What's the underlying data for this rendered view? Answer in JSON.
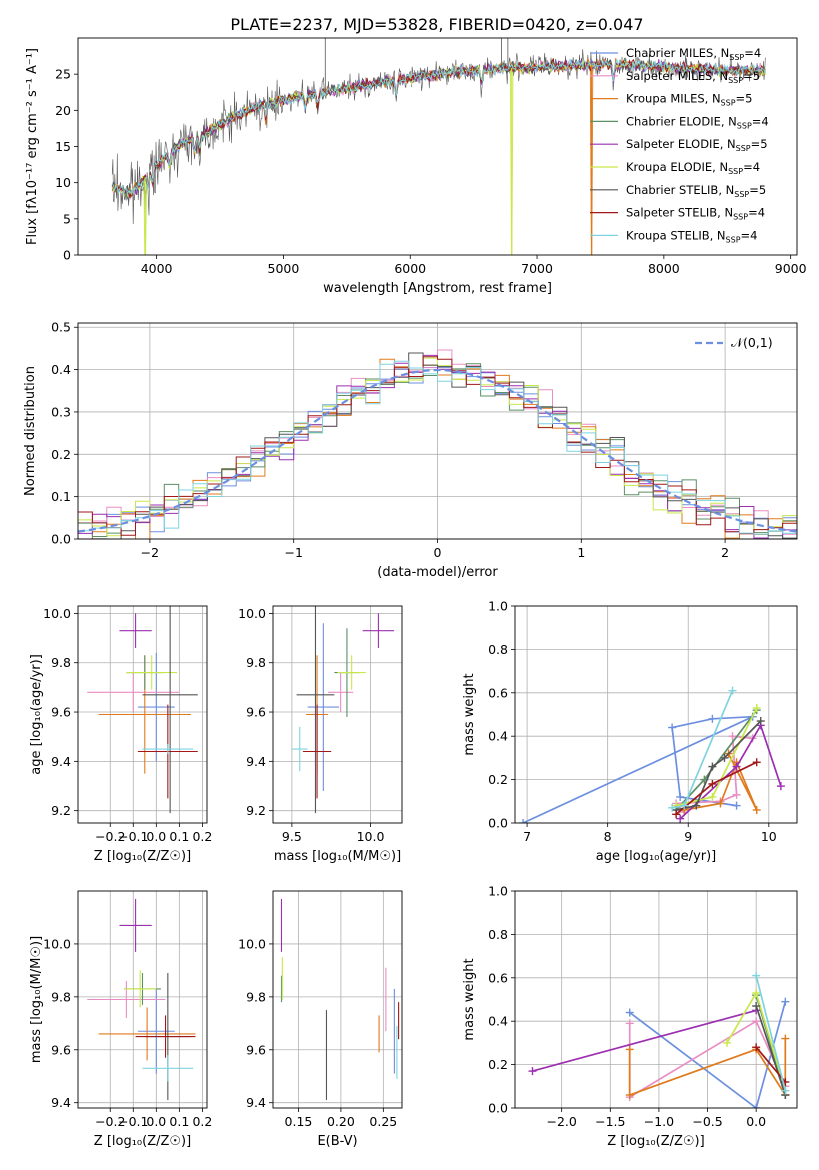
{
  "figure_title": "PLATE=2237, MJD=53828, FIBERID=0420, z=0.047",
  "models": [
    {
      "name": "Chabrier MILES",
      "nssp": "4",
      "color": "#6c8fe0"
    },
    {
      "name": "Salpeter MILES",
      "nssp": "5",
      "color": "#e88ec4"
    },
    {
      "name": "Kroupa MILES",
      "nssp": "5",
      "color": "#e07a1c"
    },
    {
      "name": "Chabrier ELODIE",
      "nssp": "4",
      "color": "#5c8f66"
    },
    {
      "name": "Salpeter ELODIE",
      "nssp": "5",
      "color": "#9b2fb0"
    },
    {
      "name": "Kroupa ELODIE",
      "nssp": "4",
      "color": "#c8e84a"
    },
    {
      "name": "Chabrier STELIB",
      "nssp": "5",
      "color": "#555555"
    },
    {
      "name": "Salpeter STELIB",
      "nssp": "4",
      "color": "#a01818"
    },
    {
      "name": "Kroupa STELIB",
      "nssp": "4",
      "color": "#7fd3e0"
    }
  ],
  "chart_data": [
    {
      "id": "spectrum",
      "type": "line",
      "title": "PLATE=2237, MJD=53828, FIBERID=0420, z=0.047",
      "xlabel": "wavelength [Angstrom, rest frame]",
      "ylabel": "Flux [fλ10⁻¹⁷ erg cm⁻² s⁻¹ A⁻¹]",
      "xlim": [
        3380,
        9050
      ],
      "ylim": [
        0,
        30
      ],
      "xticks": [
        4000,
        5000,
        6000,
        7000,
        8000,
        9000
      ],
      "yticks": [
        0,
        5,
        10,
        15,
        20,
        25
      ],
      "legend_loc": "right",
      "data_color": "#555555",
      "continuum": {
        "x": [
          3650,
          3800,
          4000,
          4200,
          4400,
          4600,
          4800,
          5000,
          5200,
          5500,
          5800,
          6100,
          6400,
          6700,
          7000,
          7300,
          7600,
          8000,
          8400,
          8800
        ],
        "y": [
          9.5,
          8.5,
          12.5,
          15.5,
          17.0,
          19.0,
          20.5,
          21.5,
          22.2,
          23.0,
          24.0,
          24.8,
          25.3,
          25.8,
          26.0,
          26.2,
          26.4,
          26.0,
          25.6,
          25.5
        ]
      },
      "dropouts": [
        {
          "x": 3910,
          "color": "#c8e84a"
        },
        {
          "x": 6800,
          "color": "#c8e84a"
        },
        {
          "x": 7430,
          "color": "#e07a1c"
        }
      ],
      "spikes": [
        {
          "x": 5330,
          "y": 30
        },
        {
          "x": 6720,
          "y": 30
        },
        {
          "x": 6770,
          "y": 30
        }
      ]
    },
    {
      "id": "residuals",
      "type": "bar",
      "xlabel": "(data-model)/error",
      "ylabel": "Normed distribution",
      "xlim": [
        -2.5,
        2.5
      ],
      "ylim": [
        0,
        0.51
      ],
      "xticks": [
        -2,
        -1,
        0,
        1,
        2
      ],
      "yticks": [
        0.0,
        0.1,
        0.2,
        0.3,
        0.4,
        0.5
      ],
      "legend": "𝒩(0,1)",
      "legend_loc": "upper right",
      "curve_color": "#6c8fe0",
      "grid": true
    },
    {
      "id": "age_vs_Z",
      "type": "scatter",
      "xlabel": "Z [log₁₀(Z/Z☉)]",
      "ylabel": "age  [log₁₀(age/yr)]",
      "xlim": [
        -0.34,
        0.22
      ],
      "ylim": [
        9.15,
        10.03
      ],
      "xticks": [
        -0.2,
        -0.1,
        0.0,
        0.1,
        0.2
      ],
      "yticks": [
        9.2,
        9.4,
        9.6,
        9.8,
        10.0
      ],
      "grid": true,
      "points": [
        {
          "model": 0,
          "x": 0.0,
          "xerr": 0.08,
          "y": 9.62,
          "yerr": 0.22
        },
        {
          "model": 1,
          "x": -0.1,
          "xerr": 0.2,
          "y": 9.68,
          "yerr": 0.08
        },
        {
          "model": 2,
          "x": -0.05,
          "xerr": 0.2,
          "y": 9.59,
          "yerr": 0.24
        },
        {
          "model": 3,
          "x": -0.05,
          "xerr": 0.08,
          "y": 9.76,
          "yerr": 0.07
        },
        {
          "model": 4,
          "x": -0.09,
          "xerr": 0.07,
          "y": 9.93,
          "yerr": 0.07
        },
        {
          "model": 5,
          "x": -0.02,
          "xerr": 0.11,
          "y": 9.76,
          "yerr": 0.07
        },
        {
          "model": 6,
          "x": 0.06,
          "xerr": 0.12,
          "y": 9.67,
          "yerr": 0.48
        },
        {
          "model": 7,
          "x": 0.05,
          "xerr": 0.13,
          "y": 9.44,
          "yerr": 0.19
        },
        {
          "model": 8,
          "x": 0.05,
          "xerr": 0.11,
          "y": 9.45,
          "yerr": 0.02
        }
      ]
    },
    {
      "id": "age_vs_mass",
      "type": "scatter",
      "xlabel": "mass [log₁₀(M/M☉)]",
      "ylabel": "",
      "xlim": [
        9.38,
        10.2
      ],
      "ylim": [
        9.15,
        10.03
      ],
      "xticks": [
        9.5,
        10.0
      ],
      "yticks": [
        9.2,
        9.4,
        9.6,
        9.8,
        10.0
      ],
      "grid": true,
      "points": [
        {
          "model": 0,
          "x": 9.7,
          "xerr": 0.1,
          "y": 9.62,
          "yerr": 0.34
        },
        {
          "model": 1,
          "x": 9.81,
          "xerr": 0.08,
          "y": 9.68,
          "yerr": 0.08
        },
        {
          "model": 2,
          "x": 9.66,
          "xerr": 0.07,
          "y": 9.59,
          "yerr": 0.24
        },
        {
          "model": 3,
          "x": 9.85,
          "xerr": 0.08,
          "y": 9.76,
          "yerr": 0.18
        },
        {
          "model": 4,
          "x": 10.05,
          "xerr": 0.1,
          "y": 9.93,
          "yerr": 0.07
        },
        {
          "model": 5,
          "x": 9.88,
          "xerr": 0.09,
          "y": 9.76,
          "yerr": 0.07
        },
        {
          "model": 6,
          "x": 9.65,
          "xerr": 0.12,
          "y": 9.67,
          "yerr": 0.48
        },
        {
          "model": 7,
          "x": 9.66,
          "xerr": 0.09,
          "y": 9.44,
          "yerr": 0.19
        },
        {
          "model": 8,
          "x": 9.55,
          "xerr": 0.05,
          "y": 9.45,
          "yerr": 0.09
        }
      ]
    },
    {
      "id": "mw_vs_age",
      "type": "line",
      "xlabel": "age  [log₁₀(age/yr)]",
      "ylabel": "mass weight",
      "xlim": [
        6.85,
        10.35
      ],
      "ylim": [
        0,
        1.0
      ],
      "xticks": [
        7,
        8,
        9,
        10
      ],
      "yticks": [
        0.0,
        0.2,
        0.4,
        0.6,
        0.8,
        1.0
      ],
      "grid": true,
      "series": [
        {
          "model": 0,
          "x": [
            9.6,
            8.9,
            8.8,
            9.3,
            9.8,
            6.95
          ],
          "y": [
            0.08,
            0.12,
            0.44,
            0.48,
            0.49,
            0.0
          ]
        },
        {
          "model": 1,
          "x": [
            8.95,
            8.85,
            9.4,
            9.6,
            9.55,
            9.8
          ],
          "y": [
            0.05,
            0.09,
            0.1,
            0.13,
            0.4,
            0.39
          ]
        },
        {
          "model": 2,
          "x": [
            8.95,
            9.4,
            9.6,
            9.85,
            9.5
          ],
          "y": [
            0.06,
            0.09,
            0.28,
            0.06,
            0.32
          ]
        },
        {
          "model": 3,
          "x": [
            8.85,
            9.2,
            9.85
          ],
          "y": [
            0.06,
            0.2,
            0.52
          ]
        },
        {
          "model": 4,
          "x": [
            8.9,
            9.6,
            9.9,
            10.15
          ],
          "y": [
            0.02,
            0.26,
            0.45,
            0.17
          ]
        },
        {
          "model": 5,
          "x": [
            8.85,
            9.3,
            9.85
          ],
          "y": [
            0.08,
            0.12,
            0.53
          ]
        },
        {
          "model": 6,
          "x": [
            8.85,
            9.1,
            9.3,
            9.45,
            9.9
          ],
          "y": [
            0.06,
            0.08,
            0.26,
            0.3,
            0.47
          ]
        },
        {
          "model": 7,
          "x": [
            8.85,
            9.3,
            9.85
          ],
          "y": [
            0.04,
            0.18,
            0.28
          ]
        },
        {
          "model": 8,
          "x": [
            8.8,
            8.95,
            9.55
          ],
          "y": [
            0.07,
            0.08,
            0.61
          ]
        }
      ]
    },
    {
      "id": "mass_vs_Z",
      "type": "scatter",
      "xlabel": "Z [log₁₀(Z/Z☉)]",
      "ylabel": "mass [log₁₀(M/M☉)]",
      "xlim": [
        -0.34,
        0.22
      ],
      "ylim": [
        9.38,
        10.2
      ],
      "xticks": [
        -0.2,
        -0.1,
        0.0,
        0.1,
        0.2
      ],
      "yticks": [
        9.4,
        9.6,
        9.8,
        10.0
      ],
      "grid": true,
      "points": [
        {
          "model": 0,
          "x": 0.0,
          "xerr": 0.08,
          "y": 9.67,
          "yerr": 0.16
        },
        {
          "model": 1,
          "x": -0.13,
          "xerr": 0.17,
          "y": 9.79,
          "yerr": 0.07
        },
        {
          "model": 2,
          "x": -0.04,
          "xerr": 0.21,
          "y": 9.66,
          "yerr": 0.1
        },
        {
          "model": 3,
          "x": -0.06,
          "xerr": 0.08,
          "y": 9.83,
          "yerr": 0.06
        },
        {
          "model": 4,
          "x": -0.09,
          "xerr": 0.07,
          "y": 10.07,
          "yerr": 0.1
        },
        {
          "model": 5,
          "x": -0.07,
          "xerr": 0.07,
          "y": 9.83,
          "yerr": 0.07
        },
        {
          "model": 6,
          "x": 0.05,
          "xerr": 0.1,
          "y": 9.65,
          "yerr": 0.24
        },
        {
          "model": 7,
          "x": 0.04,
          "xerr": 0.13,
          "y": 9.65,
          "yerr": 0.08
        },
        {
          "model": 8,
          "x": 0.05,
          "xerr": 0.11,
          "y": 9.53,
          "yerr": 0.05
        }
      ]
    },
    {
      "id": "mass_vs_ebv",
      "type": "scatter",
      "xlabel": "E(B-V)",
      "ylabel": "",
      "xlim": [
        0.12,
        0.272
      ],
      "ylim": [
        9.38,
        10.2
      ],
      "xticks": [
        0.15,
        0.2,
        0.25
      ],
      "yticks": [
        9.4,
        9.6,
        9.8,
        10.0
      ],
      "grid": true,
      "points": [
        {
          "model": 0,
          "x": 0.263,
          "xerr": 0,
          "y": 9.67,
          "yerr": 0.16
        },
        {
          "model": 1,
          "x": 0.253,
          "xerr": 0,
          "y": 9.79,
          "yerr": 0.12
        },
        {
          "model": 2,
          "x": 0.245,
          "xerr": 0,
          "y": 9.66,
          "yerr": 0.07
        },
        {
          "model": 3,
          "x": 0.13,
          "xerr": 0,
          "y": 9.83,
          "yerr": 0.05
        },
        {
          "model": 4,
          "x": 0.13,
          "xerr": 0,
          "y": 10.07,
          "yerr": 0.1
        },
        {
          "model": 5,
          "x": 0.131,
          "xerr": 0,
          "y": 9.87,
          "yerr": 0.08
        },
        {
          "model": 6,
          "x": 0.183,
          "xerr": 0,
          "y": 9.58,
          "yerr": 0.17
        },
        {
          "model": 7,
          "x": 0.268,
          "xerr": 0,
          "y": 9.71,
          "yerr": 0.07
        },
        {
          "model": 8,
          "x": 0.266,
          "xerr": 0,
          "y": 9.59,
          "yerr": 0.1
        }
      ]
    },
    {
      "id": "mw_vs_Z",
      "type": "line",
      "xlabel": "Z [log₁₀(Z/Z☉)]",
      "ylabel": "mass weight",
      "xlim": [
        -2.48,
        0.42
      ],
      "ylim": [
        0,
        1.0
      ],
      "xticks": [
        -2.0,
        -1.5,
        -1.0,
        -0.5,
        0.0
      ],
      "yticks": [
        0.0,
        0.2,
        0.4,
        0.6,
        0.8,
        1.0
      ],
      "grid": true,
      "series": [
        {
          "model": 0,
          "x": [
            -1.3,
            0.0,
            0.3
          ],
          "y": [
            0.44,
            0.0,
            0.49
          ]
        },
        {
          "model": 1,
          "x": [
            -1.3,
            -1.3,
            0.0,
            0.3
          ],
          "y": [
            0.39,
            0.05,
            0.4,
            0.1
          ]
        },
        {
          "model": 2,
          "x": [
            -1.3,
            -1.3,
            0.0,
            0.3,
            0.3
          ],
          "y": [
            0.27,
            0.06,
            0.27,
            0.06,
            0.32
          ]
        },
        {
          "model": 3,
          "x": [
            0.0,
            0.3
          ],
          "y": [
            0.52,
            0.06
          ]
        },
        {
          "model": 4,
          "x": [
            -2.3,
            0.0
          ],
          "y": [
            0.17,
            0.45
          ]
        },
        {
          "model": 5,
          "x": [
            -0.3,
            0.0,
            0.3
          ],
          "y": [
            0.3,
            0.53,
            0.08
          ]
        },
        {
          "model": 6,
          "x": [
            0.0,
            0.3
          ],
          "y": [
            0.47,
            0.06
          ]
        },
        {
          "model": 7,
          "x": [
            0.0,
            0.3
          ],
          "y": [
            0.28,
            0.12
          ]
        },
        {
          "model": 8,
          "x": [
            0.0,
            0.3
          ],
          "y": [
            0.61,
            0.08
          ]
        }
      ]
    }
  ]
}
